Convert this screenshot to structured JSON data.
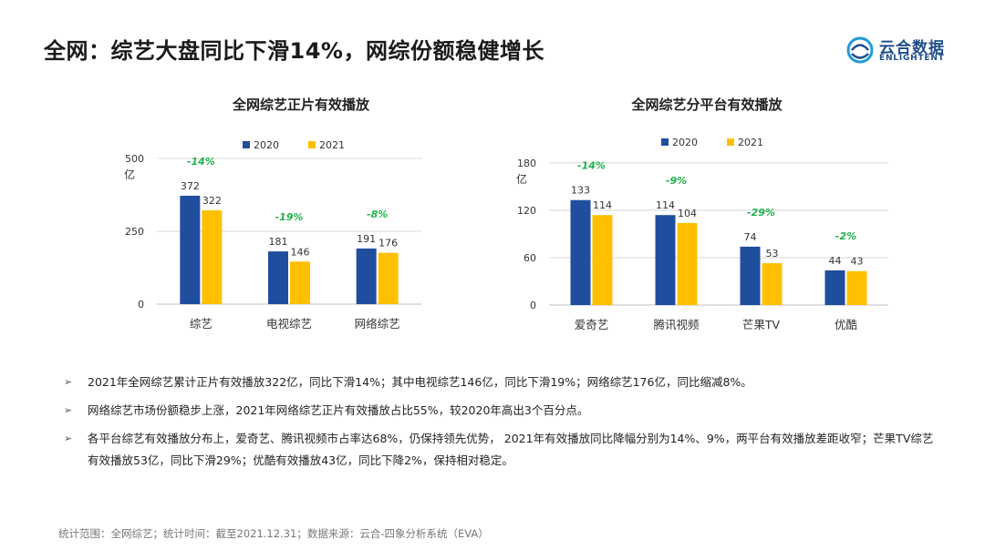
{
  "page": {
    "title": "全网：综艺大盘同比下滑14%，网综份额稳健增长",
    "logo_cn": "云合数据",
    "logo_en": "ENLIGHTENT"
  },
  "chart_data": [
    {
      "type": "bar",
      "title": "全网综艺正片有效播放",
      "ylabel": "亿",
      "ylim": [
        0,
        500
      ],
      "yticks": [
        0,
        250,
        500
      ],
      "grid": true,
      "legend_position": "top",
      "categories": [
        "综艺",
        "电视综艺",
        "网络综艺"
      ],
      "series": [
        {
          "name": "2020",
          "values": [
            372,
            181,
            191
          ],
          "color": "#1f4e9e"
        },
        {
          "name": "2021",
          "values": [
            322,
            146,
            176
          ],
          "color": "#ffc000"
        }
      ],
      "annotations": [
        "-14%",
        "-19%",
        "-8%"
      ],
      "annotation_color": "#22b14c"
    },
    {
      "type": "bar",
      "title": "全网综艺分平台有效播放",
      "ylabel": "亿",
      "ylim": [
        0,
        180
      ],
      "yticks": [
        0,
        60,
        120,
        180
      ],
      "grid": true,
      "legend_position": "top",
      "categories": [
        "爱奇艺",
        "腾讯视频",
        "芒果TV",
        "优酷"
      ],
      "series": [
        {
          "name": "2020",
          "values": [
            133,
            114,
            74,
            44
          ],
          "color": "#1f4e9e"
        },
        {
          "name": "2021",
          "values": [
            114,
            104,
            53,
            43
          ],
          "color": "#ffc000"
        }
      ],
      "annotations": [
        "-14%",
        "-9%",
        "-29%",
        "-2%"
      ],
      "annotation_color": "#22b14c"
    }
  ],
  "bullets": [
    {
      "text": "2021年全网综艺累计正片有效播放322亿，同比下滑14%；其中电视综艺146亿，同比下滑19%；网络综艺176亿，同比缩减8%。"
    },
    {
      "text": "网络综艺市场份额稳步上涨，2021年网络综艺正片有效播放占比55%，较2020年高出3个百分点。"
    },
    {
      "text": "各平台综艺有效播放分布上，爱奇艺、腾讯视频市占率达68%，仍保持领先优势， 2021年有效播放同比降幅分别为14%、9%，两平台有效播放差距收窄；芒果TV综艺有效播放53亿，同比下滑29%；优酷有效播放43亿，同比下降2%，保持相对稳定。"
    }
  ],
  "bullet_marker": "➢",
  "footnote": "统计范围：全网综艺；统计时间：截至2021.12.31；数据来源：云合-四象分析系统（EVA）"
}
